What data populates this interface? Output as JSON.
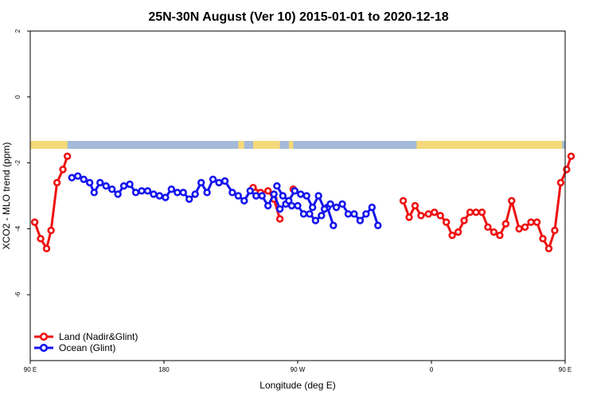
{
  "chart_data": {
    "type": "line",
    "title": "25N-30N August (Ver 10)   2015-01-01 to 2020-12-18",
    "xlabel": "Longitude (deg E)",
    "ylabel": "XCO2 - MLO trend (ppm)",
    "xlim": [
      90,
      450
    ],
    "ylim": [
      -8,
      2
    ],
    "x_ticks": [
      {
        "value": 90,
        "label": "90 E"
      },
      {
        "value": 180,
        "label": "180"
      },
      {
        "value": 270,
        "label": "90 W"
      },
      {
        "value": 360,
        "label": "0"
      },
      {
        "value": 450,
        "label": "90 E"
      },
      {
        "value": 540,
        "label": "180"
      }
    ],
    "y_ticks": [
      {
        "value": 2,
        "label": "2"
      },
      {
        "value": 0,
        "label": "0"
      },
      {
        "value": -2,
        "label": "-2"
      },
      {
        "value": -4,
        "label": "-4"
      },
      {
        "value": -6,
        "label": "-6"
      }
    ],
    "grid": false,
    "legend_position": "bottom-left",
    "land_color": "#f5d87a",
    "ocean_color": "#a3bbd9",
    "series": [
      {
        "name": "Land (Nadir&Glint)",
        "color": "#ee1111",
        "segments": [
          [
            [
              93,
              -3.8
            ],
            [
              97,
              -4.3
            ],
            [
              101,
              -4.6
            ],
            [
              104,
              -4.05
            ],
            [
              108,
              -2.6
            ],
            [
              112,
              -2.2
            ],
            [
              115,
              -1.8
            ]
          ],
          [
            [
              240,
              -2.75
            ],
            [
              245,
              -2.9
            ],
            [
              250,
              -2.85
            ],
            [
              254,
              -3.1
            ],
            [
              258,
              -3.7
            ]
          ],
          [
            [
              267,
              -2.8
            ]
          ],
          [
            [
              341,
              -3.15
            ],
            [
              345,
              -3.65
            ],
            [
              349,
              -3.3
            ],
            [
              353,
              -3.6
            ],
            [
              358,
              -3.55
            ],
            [
              362,
              -3.5
            ],
            [
              366,
              -3.6
            ],
            [
              370,
              -3.8
            ],
            [
              374,
              -4.2
            ],
            [
              378,
              -4.1
            ],
            [
              382,
              -3.75
            ],
            [
              386,
              -3.5
            ],
            [
              390,
              -3.5
            ],
            [
              394,
              -3.5
            ],
            [
              398,
              -3.95
            ],
            [
              402,
              -4.1
            ],
            [
              406,
              -4.2
            ],
            [
              410,
              -3.85
            ],
            [
              414,
              -3.15
            ],
            [
              419,
              -4.0
            ],
            [
              423,
              -3.95
            ],
            [
              427,
              -3.8
            ],
            [
              431,
              -3.8
            ],
            [
              435,
              -4.3
            ],
            [
              439,
              -4.6
            ],
            [
              443,
              -4.05
            ],
            [
              447,
              -2.6
            ],
            [
              451,
              -2.2
            ],
            [
              454,
              -1.8
            ]
          ]
        ]
      },
      {
        "name": "Ocean (Glint)",
        "color": "#1515ee",
        "segments": [
          [
            [
              118,
              -2.45
            ],
            [
              122,
              -2.4
            ],
            [
              126,
              -2.5
            ],
            [
              130,
              -2.6
            ],
            [
              133,
              -2.9
            ],
            [
              137,
              -2.6
            ],
            [
              141,
              -2.7
            ],
            [
              145,
              -2.8
            ],
            [
              149,
              -2.95
            ],
            [
              153,
              -2.7
            ],
            [
              157,
              -2.65
            ],
            [
              161,
              -2.9
            ],
            [
              165,
              -2.85
            ],
            [
              169,
              -2.85
            ],
            [
              173,
              -2.95
            ],
            [
              177,
              -3.0
            ],
            [
              181,
              -3.05
            ],
            [
              185,
              -2.8
            ],
            [
              189,
              -2.9
            ],
            [
              193,
              -2.9
            ],
            [
              197,
              -3.1
            ],
            [
              201,
              -2.95
            ],
            [
              205,
              -2.6
            ],
            [
              209,
              -2.9
            ],
            [
              213,
              -2.5
            ],
            [
              217,
              -2.6
            ],
            [
              221,
              -2.55
            ],
            [
              226,
              -2.9
            ],
            [
              230,
              -3.0
            ],
            [
              234,
              -3.15
            ],
            [
              238,
              -2.85
            ],
            [
              242,
              -3.0
            ],
            [
              246,
              -3.0
            ],
            [
              250,
              -3.3
            ],
            [
              254,
              -2.95
            ],
            [
              258,
              -3.4
            ],
            [
              262,
              -3.25
            ],
            [
              266,
              -3.3
            ],
            [
              270,
              -3.3
            ],
            [
              274,
              -3.55
            ],
            [
              278,
              -3.55
            ],
            [
              282,
              -3.75
            ],
            [
              286,
              -3.6
            ],
            [
              290,
              -3.35
            ],
            [
              294,
              -3.9
            ]
          ],
          [
            [
              256,
              -2.7
            ],
            [
              260,
              -3.0
            ],
            [
              264,
              -3.15
            ],
            [
              268,
              -2.85
            ],
            [
              272,
              -2.95
            ],
            [
              276,
              -3.0
            ],
            [
              280,
              -3.35
            ],
            [
              284,
              -3.0
            ],
            [
              288,
              -3.4
            ],
            [
              292,
              -3.25
            ],
            [
              296,
              -3.35
            ],
            [
              300,
              -3.25
            ],
            [
              304,
              -3.55
            ],
            [
              308,
              -3.55
            ],
            [
              312,
              -3.75
            ],
            [
              316,
              -3.55
            ],
            [
              320,
              -3.35
            ],
            [
              324,
              -3.9
            ]
          ]
        ]
      }
    ]
  }
}
